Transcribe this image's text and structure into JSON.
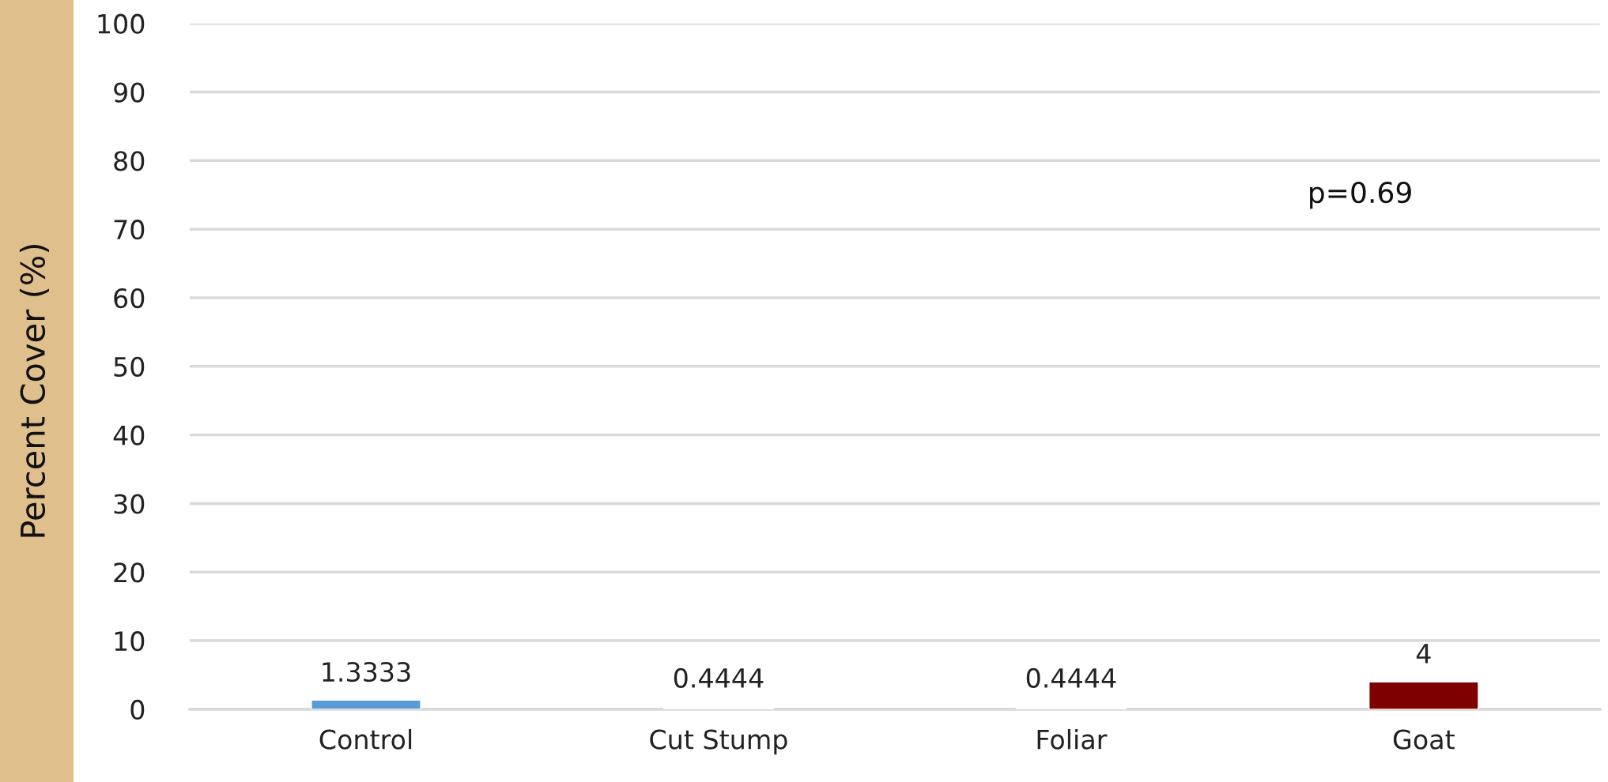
{
  "chart_data": {
    "type": "bar",
    "ylabel": "Percent Cover (%)",
    "categories": [
      "Control",
      "Cut Stump",
      "Foliar",
      "Goat"
    ],
    "values": [
      1.3333,
      0.4444,
      0.4444,
      4
    ],
    "colors": [
      "#5b9bd5",
      "#ffffff",
      "#ffffff",
      "#7f0000"
    ],
    "ylim": [
      0,
      100
    ],
    "yticks": [
      0,
      10,
      20,
      30,
      40,
      50,
      60,
      70,
      80,
      90,
      100
    ],
    "grid": "y",
    "data_labels": true,
    "annotations": [
      "p=0.69"
    ]
  }
}
